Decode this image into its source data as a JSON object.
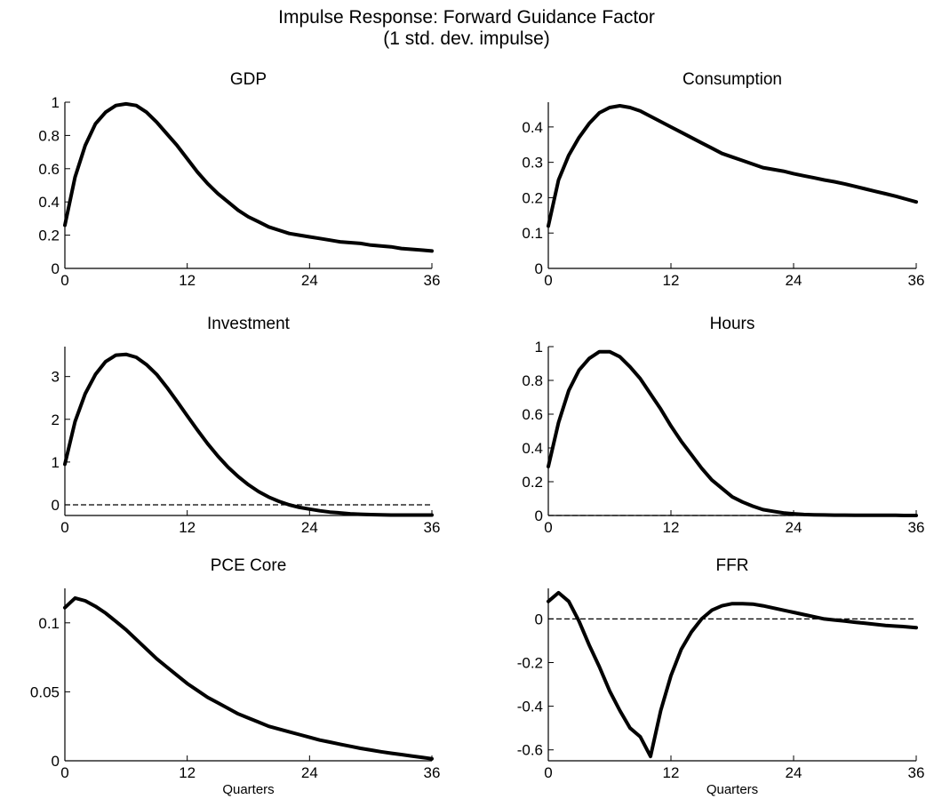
{
  "figure": {
    "title_line1": "Impulse Response: Forward Guidance Factor",
    "title_line2": "(1 std. dev. impulse)"
  },
  "chart_data": [
    {
      "type": "line",
      "title": "GDP",
      "xlabel": "",
      "xlim": [
        0,
        36
      ],
      "ylim": [
        0,
        1.0
      ],
      "xticks": [
        0,
        12,
        24,
        36
      ],
      "yticks": [
        0,
        0.2,
        0.4,
        0.6,
        0.8,
        1
      ],
      "ytick_labels": [
        "0",
        "0.2",
        "0.4",
        "0.6",
        "0.8",
        "1"
      ],
      "zero_line": false,
      "series": [
        {
          "x": [
            0,
            1,
            2,
            3,
            4,
            5,
            6,
            7,
            8,
            9,
            10,
            11,
            12,
            13,
            14,
            15,
            16,
            17,
            18,
            19,
            20,
            21,
            22,
            23,
            24,
            25,
            26,
            27,
            28,
            29,
            30,
            31,
            32,
            33,
            34,
            35,
            36
          ],
          "values": [
            0.26,
            0.55,
            0.74,
            0.87,
            0.94,
            0.98,
            0.99,
            0.98,
            0.94,
            0.88,
            0.81,
            0.74,
            0.66,
            0.58,
            0.51,
            0.45,
            0.4,
            0.35,
            0.31,
            0.28,
            0.25,
            0.23,
            0.21,
            0.2,
            0.19,
            0.18,
            0.17,
            0.16,
            0.155,
            0.15,
            0.14,
            0.135,
            0.13,
            0.12,
            0.115,
            0.11,
            0.105
          ]
        }
      ]
    },
    {
      "type": "line",
      "title": "Consumption",
      "xlabel": "",
      "xlim": [
        0,
        36
      ],
      "ylim": [
        0,
        0.47
      ],
      "xticks": [
        0,
        12,
        24,
        36
      ],
      "yticks": [
        0,
        0.1,
        0.2,
        0.3,
        0.4
      ],
      "ytick_labels": [
        "0",
        "0.1",
        "0.2",
        "0.3",
        "0.4"
      ],
      "zero_line": false,
      "series": [
        {
          "x": [
            0,
            1,
            2,
            3,
            4,
            5,
            6,
            7,
            8,
            9,
            10,
            11,
            12,
            13,
            14,
            15,
            16,
            17,
            18,
            19,
            20,
            21,
            22,
            23,
            24,
            25,
            26,
            27,
            28,
            29,
            30,
            31,
            32,
            33,
            34,
            35,
            36
          ],
          "values": [
            0.12,
            0.25,
            0.32,
            0.37,
            0.41,
            0.44,
            0.455,
            0.46,
            0.455,
            0.445,
            0.43,
            0.415,
            0.4,
            0.385,
            0.37,
            0.355,
            0.34,
            0.325,
            0.315,
            0.305,
            0.295,
            0.285,
            0.28,
            0.275,
            0.268,
            0.262,
            0.256,
            0.25,
            0.245,
            0.239,
            0.232,
            0.225,
            0.218,
            0.211,
            0.204,
            0.196,
            0.188
          ]
        }
      ]
    },
    {
      "type": "line",
      "title": "Investment",
      "xlabel": "",
      "xlim": [
        0,
        36
      ],
      "ylim": [
        -0.25,
        3.7
      ],
      "xticks": [
        0,
        12,
        24,
        36
      ],
      "yticks": [
        0,
        1,
        2,
        3
      ],
      "ytick_labels": [
        "0",
        "1",
        "2",
        "3"
      ],
      "zero_line": true,
      "series": [
        {
          "x": [
            0,
            1,
            2,
            3,
            4,
            5,
            6,
            7,
            8,
            9,
            10,
            11,
            12,
            13,
            14,
            15,
            16,
            17,
            18,
            19,
            20,
            21,
            22,
            23,
            24,
            25,
            26,
            27,
            28,
            29,
            30,
            31,
            32,
            33,
            34,
            35,
            36
          ],
          "values": [
            0.95,
            1.95,
            2.6,
            3.05,
            3.35,
            3.5,
            3.52,
            3.45,
            3.28,
            3.05,
            2.75,
            2.42,
            2.08,
            1.75,
            1.43,
            1.14,
            0.88,
            0.66,
            0.47,
            0.31,
            0.18,
            0.08,
            0.0,
            -0.06,
            -0.1,
            -0.14,
            -0.17,
            -0.19,
            -0.21,
            -0.22,
            -0.23,
            -0.235,
            -0.24,
            -0.24,
            -0.24,
            -0.24,
            -0.24
          ]
        }
      ]
    },
    {
      "type": "line",
      "title": "Hours",
      "xlabel": "",
      "xlim": [
        0,
        36
      ],
      "ylim": [
        0,
        1.0
      ],
      "xticks": [
        0,
        12,
        24,
        36
      ],
      "yticks": [
        0,
        0.2,
        0.4,
        0.6,
        0.8,
        1
      ],
      "ytick_labels": [
        "0",
        "0.2",
        "0.4",
        "0.6",
        "0.8",
        "1"
      ],
      "zero_line": true,
      "series": [
        {
          "x": [
            0,
            1,
            2,
            3,
            4,
            5,
            6,
            7,
            8,
            9,
            10,
            11,
            12,
            13,
            14,
            15,
            16,
            17,
            18,
            19,
            20,
            21,
            22,
            23,
            24,
            25,
            26,
            27,
            28,
            29,
            30,
            31,
            32,
            33,
            34,
            35,
            36
          ],
          "values": [
            0.29,
            0.55,
            0.74,
            0.86,
            0.93,
            0.97,
            0.97,
            0.94,
            0.88,
            0.81,
            0.72,
            0.63,
            0.53,
            0.44,
            0.36,
            0.28,
            0.21,
            0.16,
            0.11,
            0.08,
            0.055,
            0.035,
            0.025,
            0.015,
            0.01,
            0.006,
            0.004,
            0.003,
            0.002,
            0.002,
            0.001,
            0.001,
            0.001,
            0.001,
            0.001,
            0.0,
            0.0
          ]
        }
      ]
    },
    {
      "type": "line",
      "title": "PCE Core",
      "xlabel": "Quarters",
      "xlim": [
        0,
        36
      ],
      "ylim": [
        0,
        0.125
      ],
      "xticks": [
        0,
        12,
        24,
        36
      ],
      "yticks": [
        0,
        0.05,
        0.1
      ],
      "ytick_labels": [
        "0",
        "0.05",
        "0.1"
      ],
      "zero_line": false,
      "series": [
        {
          "x": [
            0,
            1,
            2,
            3,
            4,
            5,
            6,
            7,
            8,
            9,
            10,
            11,
            12,
            13,
            14,
            15,
            16,
            17,
            18,
            19,
            20,
            21,
            22,
            23,
            24,
            25,
            26,
            27,
            28,
            29,
            30,
            31,
            32,
            33,
            34,
            35,
            36
          ],
          "values": [
            0.111,
            0.118,
            0.116,
            0.112,
            0.107,
            0.101,
            0.095,
            0.088,
            0.081,
            0.074,
            0.068,
            0.062,
            0.056,
            0.051,
            0.046,
            0.042,
            0.038,
            0.034,
            0.031,
            0.028,
            0.025,
            0.023,
            0.021,
            0.019,
            0.017,
            0.015,
            0.0135,
            0.012,
            0.0105,
            0.009,
            0.0078,
            0.0066,
            0.0055,
            0.0045,
            0.0035,
            0.0025,
            0.0015
          ]
        }
      ]
    },
    {
      "type": "line",
      "title": "FFR",
      "xlabel": "Quarters",
      "xlim": [
        0,
        36
      ],
      "ylim": [
        -0.65,
        0.14
      ],
      "xticks": [
        0,
        12,
        24,
        36
      ],
      "yticks": [
        -0.6,
        -0.4,
        -0.2,
        0
      ],
      "ytick_labels": [
        "-0.6",
        "-0.4",
        "-0.2",
        "0"
      ],
      "zero_line": true,
      "series": [
        {
          "x": [
            0,
            1,
            2,
            3,
            4,
            5,
            6,
            7,
            8,
            9,
            10,
            11,
            12,
            13,
            14,
            15,
            16,
            17,
            18,
            19,
            20,
            21,
            22,
            23,
            24,
            25,
            26,
            27,
            28,
            29,
            30,
            31,
            32,
            33,
            34,
            35,
            36
          ],
          "values": [
            0.08,
            0.12,
            0.08,
            -0.01,
            -0.12,
            -0.22,
            -0.33,
            -0.42,
            -0.5,
            -0.54,
            -0.63,
            -0.42,
            -0.26,
            -0.14,
            -0.06,
            0.0,
            0.04,
            0.06,
            0.07,
            0.07,
            0.068,
            0.06,
            0.05,
            0.04,
            0.03,
            0.02,
            0.01,
            0.0,
            -0.005,
            -0.01,
            -0.015,
            -0.02,
            -0.025,
            -0.03,
            -0.033,
            -0.036,
            -0.04
          ]
        }
      ]
    }
  ]
}
